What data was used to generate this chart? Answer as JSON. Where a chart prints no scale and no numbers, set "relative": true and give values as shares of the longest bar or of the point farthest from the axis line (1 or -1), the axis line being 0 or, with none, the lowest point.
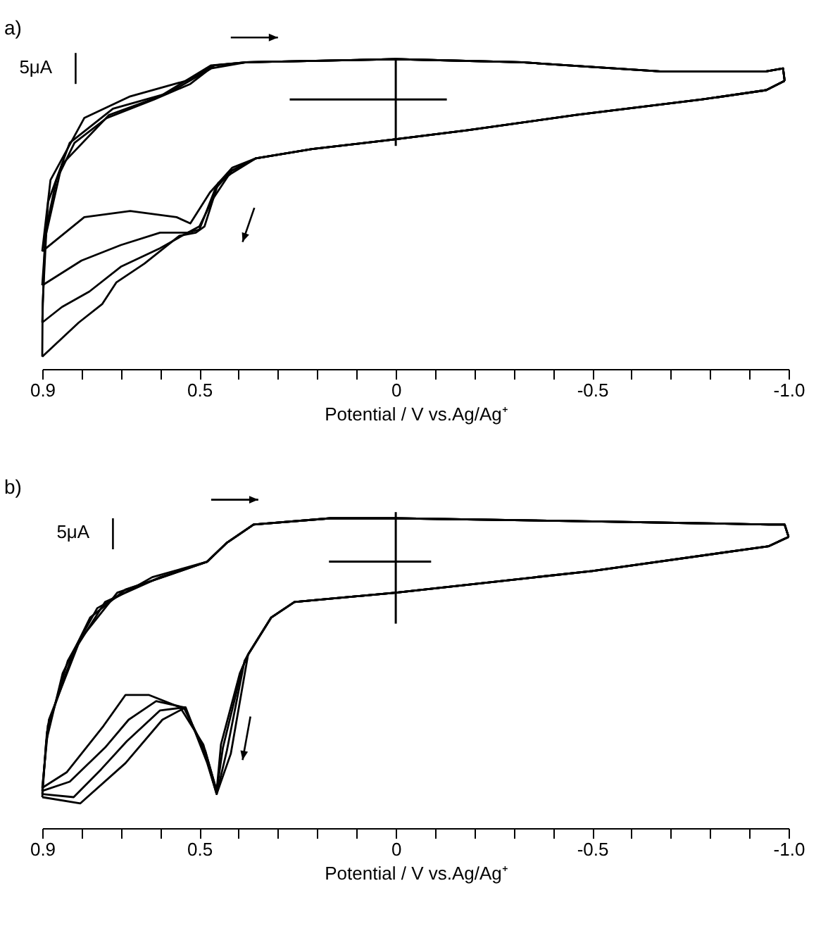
{
  "chart_data": [
    {
      "type": "line",
      "title": "a)",
      "xlabel": "Potential / V  vs.Ag/Ag⁺",
      "relative": true,
      "xlim": [
        0.9,
        -1.0
      ],
      "xticks": [
        0.9,
        {
          "value": 0.8,
          "label": null
        },
        {
          "value": 0.7,
          "label": null
        },
        {
          "value": 0.6,
          "label": null
        },
        0.5,
        {
          "value": 0.4,
          "label": null
        },
        {
          "value": 0.3,
          "label": null
        },
        {
          "value": 0.2,
          "label": null
        },
        {
          "value": 0.1,
          "label": null
        },
        0,
        {
          "value": -0.1,
          "label": null
        },
        {
          "value": -0.2,
          "label": null
        },
        {
          "value": -0.3,
          "label": null
        },
        {
          "value": -0.4,
          "label": null
        },
        -0.5,
        {
          "value": -0.6,
          "label": null
        },
        {
          "value": -0.7,
          "label": null
        },
        {
          "value": -0.8,
          "label": null
        },
        {
          "value": -0.9,
          "label": null
        },
        {
          "value": -1.0,
          "label": "-1.0"
        }
      ],
      "annotations": [
        "5μA"
      ],
      "series": [
        {
          "color": "#000000",
          "x": [
            0.9,
            0.879,
            0.793,
            0.676,
            0.534,
            0.462,
            0.38,
            0.0,
            -0.32,
            -0.68,
            -0.94,
            -0.986,
            -0.99
          ],
          "values": [
            0.38,
            0.61,
            0.81,
            0.88,
            0.93,
            0.98,
            0.99,
            1.0,
            0.99,
            0.96,
            0.96,
            0.97,
            0.93
          ]
        },
        {
          "color": "#000000",
          "x": [
            -0.99,
            -0.943,
            -0.78,
            -0.46,
            -0.18,
            0.01,
            0.213,
            0.356,
            0.416,
            0.473,
            0.523,
            0.558,
            0.676,
            0.793,
            0.9
          ],
          "values": [
            0.93,
            0.9,
            0.87,
            0.82,
            0.77,
            0.74,
            0.71,
            0.68,
            0.65,
            0.57,
            0.47,
            0.49,
            0.51,
            0.49,
            0.38
          ]
        },
        {
          "color": "#000000",
          "x": [
            0.9,
            0.885,
            0.83,
            0.72,
            0.58,
            0.47,
            0.38,
            0.0,
            -0.32,
            -0.68,
            -0.94,
            -0.986,
            -0.99
          ],
          "values": [
            0.27,
            0.54,
            0.73,
            0.84,
            0.89,
            0.97,
            0.99,
            1.0,
            0.99,
            0.96,
            0.96,
            0.97,
            0.93
          ]
        },
        {
          "color": "#000000",
          "x": [
            -0.99,
            -0.943,
            -0.78,
            -0.46,
            -0.18,
            0.01,
            0.213,
            0.356,
            0.418,
            0.465,
            0.5,
            0.53,
            0.6,
            0.7,
            0.8,
            0.9
          ],
          "values": [
            0.93,
            0.9,
            0.87,
            0.82,
            0.77,
            0.74,
            0.71,
            0.68,
            0.64,
            0.55,
            0.46,
            0.44,
            0.44,
            0.4,
            0.35,
            0.27
          ]
        },
        {
          "color": "#000000",
          "x": [
            0.9,
            0.893,
            0.85,
            0.73,
            0.6,
            0.47,
            0.38,
            0.0,
            -0.32,
            -0.68,
            -0.94,
            -0.986,
            -0.99
          ],
          "values": [
            0.15,
            0.42,
            0.66,
            0.82,
            0.88,
            0.98,
            0.99,
            1.0,
            0.99,
            0.96,
            0.96,
            0.97,
            0.93
          ]
        },
        {
          "color": "#000000",
          "x": [
            -0.99,
            -0.943,
            -0.78,
            -0.46,
            -0.18,
            0.01,
            0.213,
            0.356,
            0.419,
            0.46,
            0.5,
            0.53,
            0.6,
            0.7,
            0.78,
            0.85,
            0.9
          ],
          "values": [
            0.93,
            0.9,
            0.87,
            0.82,
            0.77,
            0.74,
            0.71,
            0.68,
            0.64,
            0.58,
            0.45,
            0.44,
            0.39,
            0.33,
            0.25,
            0.2,
            0.15
          ]
        },
        {
          "color": "#000000",
          "x": [
            0.9,
            0.899,
            0.889,
            0.864,
            0.818,
            0.736,
            0.615,
            0.523,
            0.462,
            0.38,
            0.0,
            -0.32,
            -0.68,
            -0.94,
            -0.986,
            -0.99
          ],
          "values": [
            0.04,
            0.21,
            0.46,
            0.61,
            0.73,
            0.81,
            0.87,
            0.92,
            0.98,
            0.99,
            1.0,
            0.99,
            0.96,
            0.96,
            0.97,
            0.93
          ]
        },
        {
          "color": "#000000",
          "x": [
            -0.99,
            -0.943,
            -0.78,
            -0.46,
            -0.18,
            0.01,
            0.213,
            0.356,
            0.42,
            0.452,
            0.487,
            0.509,
            0.551,
            0.64,
            0.711,
            0.747,
            0.807,
            0.9
          ],
          "values": [
            0.93,
            0.9,
            0.87,
            0.82,
            0.77,
            0.74,
            0.71,
            0.68,
            0.63,
            0.6,
            0.46,
            0.44,
            0.43,
            0.34,
            0.28,
            0.21,
            0.15,
            0.04
          ]
        }
      ]
    },
    {
      "type": "line",
      "title": "b)",
      "xlabel": "Potential / V  vs.Ag/Ag⁺",
      "relative": true,
      "xlim": [
        0.9,
        -1.0
      ],
      "xticks": [
        0.9,
        {
          "value": 0.8,
          "label": null
        },
        {
          "value": 0.7,
          "label": null
        },
        {
          "value": 0.6,
          "label": null
        },
        0.5,
        {
          "value": 0.4,
          "label": null
        },
        {
          "value": 0.3,
          "label": null
        },
        {
          "value": 0.2,
          "label": null
        },
        {
          "value": 0.1,
          "label": null
        },
        0,
        {
          "value": -0.1,
          "label": null
        },
        {
          "value": -0.2,
          "label": null
        },
        {
          "value": -0.3,
          "label": null
        },
        {
          "value": -0.4,
          "label": null
        },
        -0.5,
        {
          "value": -0.6,
          "label": null
        },
        {
          "value": -0.7,
          "label": null
        },
        {
          "value": -0.8,
          "label": null
        },
        {
          "value": -0.9,
          "label": null
        },
        {
          "value": -1.0,
          "label": "-1.0"
        }
      ],
      "annotations": [
        "5μA"
      ],
      "series": [
        {
          "color": "#000000",
          "x": [
            0.9,
            0.883,
            0.803,
            0.709,
            0.594,
            0.48,
            0.431,
            0.362,
            0.167,
            0.0,
            -0.5,
            -0.95,
            -0.99,
            -1.0
          ],
          "values": [
            0.13,
            0.35,
            0.61,
            0.76,
            0.81,
            0.86,
            0.92,
            0.98,
            1.0,
            1.0,
            0.99,
            0.98,
            0.98,
            0.94
          ]
        },
        {
          "color": "#000000",
          "x": [
            -1.0,
            -0.95,
            -0.5,
            0.0,
            0.258,
            0.317,
            0.376,
            0.397,
            0.445,
            0.456,
            0.49,
            0.549,
            0.629,
            0.688,
            0.744,
            0.838,
            0.9
          ],
          "values": [
            0.94,
            0.91,
            0.83,
            0.76,
            0.73,
            0.68,
            0.56,
            0.5,
            0.27,
            0.12,
            0.27,
            0.39,
            0.43,
            0.43,
            0.33,
            0.18,
            0.13
          ]
        },
        {
          "color": "#000000",
          "x": [
            0.9,
            0.886,
            0.82,
            0.74,
            0.6,
            0.48,
            0.431,
            0.362,
            0.167,
            0.0,
            -0.5,
            -0.95,
            -0.99,
            -1.0
          ],
          "values": [
            0.12,
            0.33,
            0.57,
            0.73,
            0.81,
            0.86,
            0.92,
            0.98,
            1.0,
            1.0,
            0.99,
            0.98,
            0.98,
            0.94
          ]
        },
        {
          "color": "#000000",
          "x": [
            -1.0,
            -0.95,
            -0.5,
            0.0,
            0.258,
            0.317,
            0.376,
            0.39,
            0.44,
            0.456,
            0.485,
            0.54,
            0.61,
            0.68,
            0.74,
            0.83,
            0.9
          ],
          "values": [
            0.94,
            0.91,
            0.83,
            0.76,
            0.73,
            0.68,
            0.56,
            0.52,
            0.26,
            0.12,
            0.25,
            0.39,
            0.41,
            0.35,
            0.26,
            0.15,
            0.12
          ]
        },
        {
          "color": "#000000",
          "x": [
            0.9,
            0.888,
            0.835,
            0.76,
            0.62,
            0.48,
            0.431,
            0.362,
            0.167,
            0.0,
            -0.5,
            -0.95,
            -0.99,
            -1.0
          ],
          "values": [
            0.11,
            0.31,
            0.54,
            0.71,
            0.81,
            0.86,
            0.92,
            0.98,
            1.0,
            1.0,
            0.99,
            0.98,
            0.98,
            0.94
          ]
        },
        {
          "color": "#000000",
          "x": [
            -1.0,
            -0.95,
            -0.5,
            0.0,
            0.258,
            0.317,
            0.376,
            0.385,
            0.43,
            0.456,
            0.483,
            0.537,
            0.6,
            0.685,
            0.75,
            0.82,
            0.9
          ],
          "values": [
            0.94,
            0.91,
            0.83,
            0.76,
            0.73,
            0.68,
            0.56,
            0.54,
            0.25,
            0.11,
            0.23,
            0.39,
            0.38,
            0.28,
            0.19,
            0.1,
            0.11
          ]
        },
        {
          "color": "#000000",
          "x": [
            0.9,
            0.89,
            0.848,
            0.778,
            0.688,
            0.57,
            0.48,
            0.431,
            0.362,
            0.167,
            0.0,
            -0.5,
            -0.95,
            -0.99,
            -1.0
          ],
          "values": [
            0.1,
            0.28,
            0.5,
            0.68,
            0.77,
            0.82,
            0.86,
            0.92,
            0.98,
            1.0,
            1.0,
            0.99,
            0.98,
            0.98,
            0.94
          ]
        },
        {
          "color": "#000000",
          "x": [
            -1.0,
            -0.95,
            -0.5,
            0.0,
            0.258,
            0.317,
            0.376,
            0.42,
            0.456,
            0.48,
            0.535,
            0.594,
            0.688,
            0.803,
            0.9
          ],
          "values": [
            0.94,
            0.91,
            0.83,
            0.76,
            0.73,
            0.68,
            0.56,
            0.24,
            0.11,
            0.21,
            0.39,
            0.35,
            0.21,
            0.08,
            0.1
          ]
        }
      ]
    }
  ]
}
